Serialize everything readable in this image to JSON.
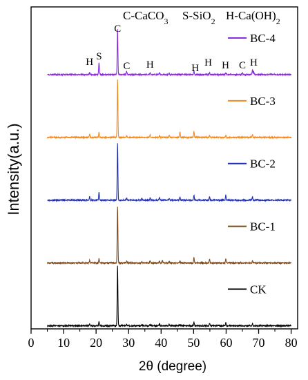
{
  "chart_data": {
    "type": "line",
    "title": "",
    "xlabel": "2θ (degree)",
    "ylabel": "Intensity(a.u.)",
    "xlim": [
      0,
      82
    ],
    "xticks": [
      0,
      10,
      20,
      30,
      40,
      50,
      60,
      70,
      80
    ],
    "ylim": [
      0,
      6
    ],
    "grid": false,
    "legend": "inline-right",
    "phase_legend": [
      {
        "symbol": "C",
        "label": "C-CaCO3"
      },
      {
        "symbol": "S",
        "label": "S-SiO2"
      },
      {
        "symbol": "H",
        "label": "H-Ca(OH)2"
      }
    ],
    "annotations": [
      {
        "text": "H",
        "x": 18.0
      },
      {
        "text": "S",
        "x": 20.9
      },
      {
        "text": "C",
        "x": 26.6
      },
      {
        "text": "C",
        "x": 29.4
      },
      {
        "text": "H",
        "x": 36.6
      },
      {
        "text": "H",
        "x": 50.5
      },
      {
        "text": "H",
        "x": 54.5
      },
      {
        "text": "H",
        "x": 59.8
      },
      {
        "text": "C",
        "x": 65.0
      },
      {
        "text": "H",
        "x": 68.5
      }
    ],
    "series": [
      {
        "name": "CK",
        "color": "#000000",
        "baseline": 0.05,
        "peaks": [
          [
            18.0,
            0.03
          ],
          [
            20.9,
            0.06
          ],
          [
            26.6,
            0.95
          ],
          [
            29.4,
            0.02
          ],
          [
            34.1,
            0.02
          ],
          [
            36.6,
            0.02
          ],
          [
            39.5,
            0.03
          ],
          [
            42.5,
            0.02
          ],
          [
            45.8,
            0.02
          ],
          [
            50.1,
            0.05
          ],
          [
            54.9,
            0.04
          ],
          [
            59.9,
            0.05
          ],
          [
            68.1,
            0.03
          ]
        ]
      },
      {
        "name": "BC-1",
        "color": "#7a4a1e",
        "baseline": 1.05,
        "peaks": [
          [
            18.0,
            0.04
          ],
          [
            20.9,
            0.07
          ],
          [
            26.6,
            0.9
          ],
          [
            29.4,
            0.03
          ],
          [
            34.1,
            0.02
          ],
          [
            36.6,
            0.04
          ],
          [
            39.5,
            0.03
          ],
          [
            40.4,
            0.04
          ],
          [
            42.5,
            0.02
          ],
          [
            45.8,
            0.03
          ],
          [
            50.1,
            0.08
          ],
          [
            54.9,
            0.06
          ],
          [
            59.9,
            0.06
          ],
          [
            68.1,
            0.04
          ]
        ]
      },
      {
        "name": "BC-2",
        "color": "#1f2fb5",
        "baseline": 2.05,
        "peaks": [
          [
            18.0,
            0.06
          ],
          [
            20.9,
            0.12
          ],
          [
            26.6,
            0.9
          ],
          [
            29.4,
            0.03
          ],
          [
            34.1,
            0.03
          ],
          [
            36.6,
            0.04
          ],
          [
            39.5,
            0.04
          ],
          [
            42.5,
            0.03
          ],
          [
            45.8,
            0.05
          ],
          [
            50.1,
            0.08
          ],
          [
            54.9,
            0.06
          ],
          [
            59.9,
            0.08
          ],
          [
            68.1,
            0.05
          ]
        ]
      },
      {
        "name": "BC-3",
        "color": "#f58a1f",
        "baseline": 3.05,
        "peaks": [
          [
            18.0,
            0.05
          ],
          [
            20.9,
            0.08
          ],
          [
            26.6,
            0.92
          ],
          [
            29.4,
            0.03
          ],
          [
            36.6,
            0.04
          ],
          [
            39.5,
            0.03
          ],
          [
            42.5,
            0.04
          ],
          [
            45.8,
            0.09
          ],
          [
            50.1,
            0.1
          ],
          [
            54.9,
            0.03
          ],
          [
            59.9,
            0.04
          ],
          [
            68.1,
            0.05
          ]
        ]
      },
      {
        "name": "BC-4",
        "color": "#8a2be2",
        "baseline": 4.05,
        "peaks": [
          [
            18.0,
            0.03
          ],
          [
            20.9,
            0.19
          ],
          [
            26.6,
            0.72
          ],
          [
            29.4,
            0.05
          ],
          [
            36.6,
            0.03
          ],
          [
            39.5,
            0.03
          ],
          [
            42.5,
            0.02
          ],
          [
            50.1,
            0.06
          ],
          [
            54.9,
            0.03
          ],
          [
            59.9,
            0.03
          ],
          [
            65.0,
            0.03
          ],
          [
            68.1,
            0.08
          ],
          [
            68.5,
            0.05
          ]
        ]
      }
    ]
  }
}
